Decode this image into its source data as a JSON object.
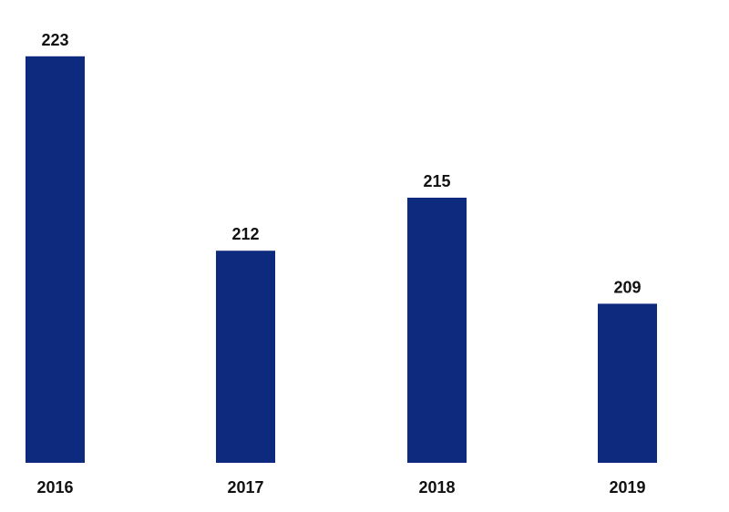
{
  "chart_data": {
    "type": "bar",
    "title": "",
    "xlabel": "",
    "ylabel": "",
    "categories": [
      "2016",
      "2017",
      "2018",
      "2019"
    ],
    "values": [
      223,
      212,
      215,
      209
    ],
    "ylim": [
      200,
      225
    ],
    "grid": false,
    "legend": "none",
    "bar_color": "#0e2a7e",
    "data_labels": [
      "223",
      "212",
      "215",
      "209"
    ]
  }
}
